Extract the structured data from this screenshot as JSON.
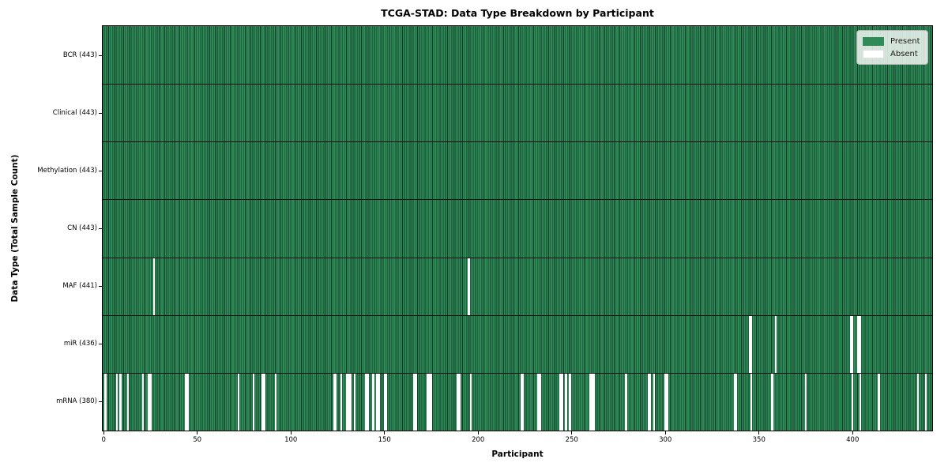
{
  "title": "TCGA-STAD: Data Type Breakdown by Participant",
  "xlabel": "Participant",
  "ylabel": "Data Type (Total Sample Count)",
  "legend": {
    "items": [
      {
        "key": "present",
        "label": "Present"
      },
      {
        "key": "absent",
        "label": "Absent"
      }
    ]
  },
  "colors": {
    "present": "#2e8b57",
    "bar_edge": "#123c27",
    "absent": "#ffffff",
    "row_separator": "#101010",
    "spine": "#000000"
  },
  "chart_data": {
    "type": "heatmap",
    "title": "TCGA-STAD: Data Type Breakdown by Participant",
    "xlabel": "Participant",
    "ylabel": "Data Type (Total Sample Count)",
    "n_participants": 443,
    "xlim": [
      -0.5,
      442.5
    ],
    "x_ticks": [
      0,
      50,
      100,
      150,
      200,
      250,
      300,
      350,
      400
    ],
    "grid": false,
    "legend_position": "upper right",
    "cell_values": {
      "present": 1,
      "absent": 0
    },
    "rows": [
      {
        "label": "BCR (443)",
        "data_type": "BCR",
        "present_count": 443,
        "absent_count": 0,
        "absent_participants": []
      },
      {
        "label": "Clinical (443)",
        "data_type": "Clinical",
        "present_count": 443,
        "absent_count": 0,
        "absent_participants": []
      },
      {
        "label": "Methylation (443)",
        "data_type": "Methylation",
        "present_count": 443,
        "absent_count": 0,
        "absent_participants": []
      },
      {
        "label": "CN (443)",
        "data_type": "CN",
        "present_count": 443,
        "absent_count": 0,
        "absent_participants": []
      },
      {
        "label": "MAF (441)",
        "data_type": "MAF",
        "present_count": 441,
        "absent_count": 2,
        "absent_participants": [
          27,
          195
        ]
      },
      {
        "label": "miR (436)",
        "data_type": "miR",
        "present_count": 436,
        "absent_count": 7,
        "absent_participants": [
          345,
          346,
          359,
          399,
          400,
          403,
          404
        ]
      },
      {
        "label": "mRNA (380)",
        "data_type": "mRNA",
        "present_count": 380,
        "absent_count": 63,
        "absent_participants": [
          1,
          7,
          9,
          13,
          21,
          24,
          25,
          44,
          45,
          72,
          80,
          85,
          86,
          92,
          123,
          124,
          127,
          130,
          131,
          132,
          134,
          140,
          141,
          144,
          146,
          147,
          150,
          151,
          166,
          167,
          173,
          174,
          175,
          189,
          190,
          196,
          223,
          224,
          232,
          233,
          244,
          245,
          247,
          249,
          260,
          261,
          262,
          279,
          291,
          292,
          294,
          300,
          301,
          337,
          338,
          346,
          357,
          375,
          400,
          404,
          414,
          435,
          439
        ]
      }
    ]
  }
}
